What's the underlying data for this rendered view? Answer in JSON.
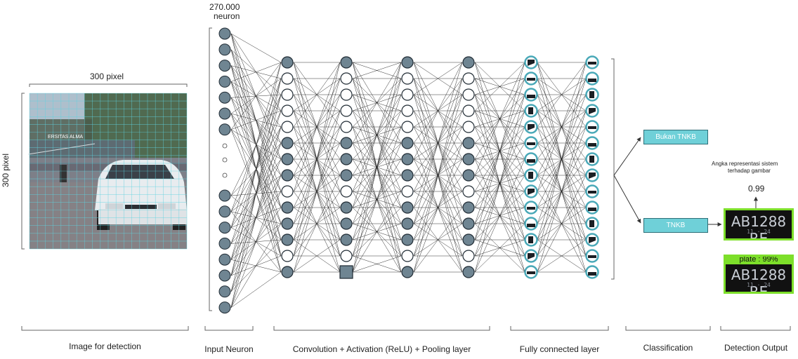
{
  "image_panel": {
    "width_label": "300 pixel",
    "height_label": "300 pixel",
    "sign_text": "ERSITAS ALMA"
  },
  "input_layer": {
    "neuron_count_label": "270.000",
    "neuron_unit_label": "neuron"
  },
  "classification": {
    "negative_label": "Bukan TNKB",
    "positive_label": "TNKB"
  },
  "detection_output": {
    "note_line1": "Angka representasi sistem",
    "note_line2": "terhadap gambar",
    "score": "0.99",
    "plate_text": "AB1288 RE",
    "plate_subtext": "11 · 24",
    "detected_tag": "plate : 99%"
  },
  "section_labels": {
    "image": "Image for detection",
    "input": "Input Neuron",
    "conv": "Convolution + Activation (ReLU) + Pooling layer",
    "fc": "Fully connected layer",
    "classification": "Classification",
    "output": "Detection Output"
  },
  "colors": {
    "neuron_fill": "#6f8592",
    "neuron_outline": "#1f2a33",
    "fc_ring": "#4aa9b8",
    "class_box": "#6fd0d8",
    "plate_border": "#7ddf2a"
  }
}
